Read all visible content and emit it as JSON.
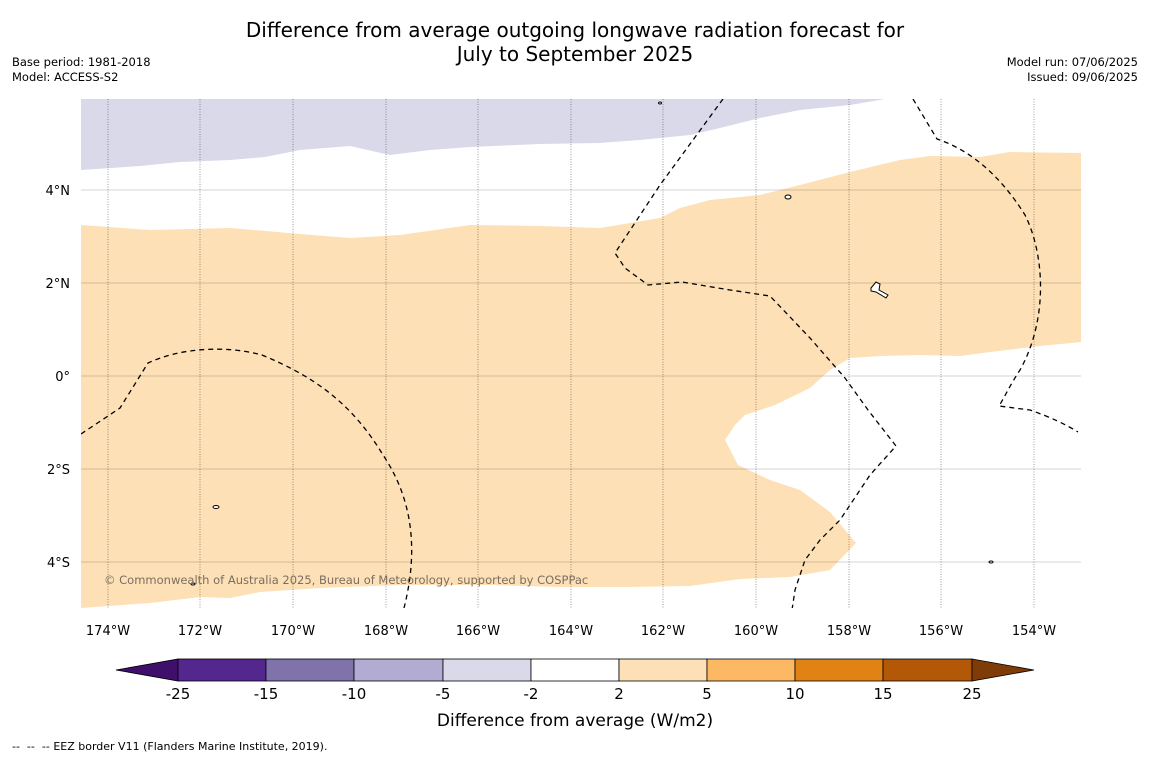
{
  "title": {
    "line1": "Difference from average outgoing longwave radiation forecast for",
    "line2": "July to September 2025"
  },
  "meta_left": {
    "base_period": "Base period: 1981-2018",
    "model": "Model: ACCESS-S2"
  },
  "meta_right": {
    "model_run": "Model run: 07/06/2025",
    "issued": "Issued: 09/06/2025"
  },
  "map": {
    "lat_labels": [
      "4°N",
      "2°N",
      "0°",
      "2°S",
      "4°S"
    ],
    "lon_labels": [
      "174°W",
      "172°W",
      "170°W",
      "168°W",
      "166°W",
      "164°W",
      "162°W",
      "160°W",
      "158°W",
      "156°W",
      "154°W"
    ],
    "copyright": "© Commonwealth of Australia 2025, Bureau of Meteorology, supported by COSPPac",
    "colors": {
      "anomaly_2_to_5": "#fde0b6",
      "anomaly_minus5_to_minus2": "#d9d9ea",
      "land_outline": "#000000",
      "eez_border": "#000000"
    }
  },
  "colorbar": {
    "ticks": [
      "-25",
      "-15",
      "-10",
      "-5",
      "-2",
      "2",
      "5",
      "10",
      "15",
      "25"
    ],
    "colors": [
      "#3f0f6b",
      "#54278f",
      "#8073ac",
      "#b2abd2",
      "#d9d9ea",
      "#ffffff",
      "#fde0b6",
      "#fdb863",
      "#e08214",
      "#b35806",
      "#7f3b08"
    ],
    "title": "Difference from average (W/m2)"
  },
  "footer": {
    "legend_symbol": "--  --  --",
    "legend_text": "EEZ border V11 (Flanders Marine Institute, 2019)."
  }
}
